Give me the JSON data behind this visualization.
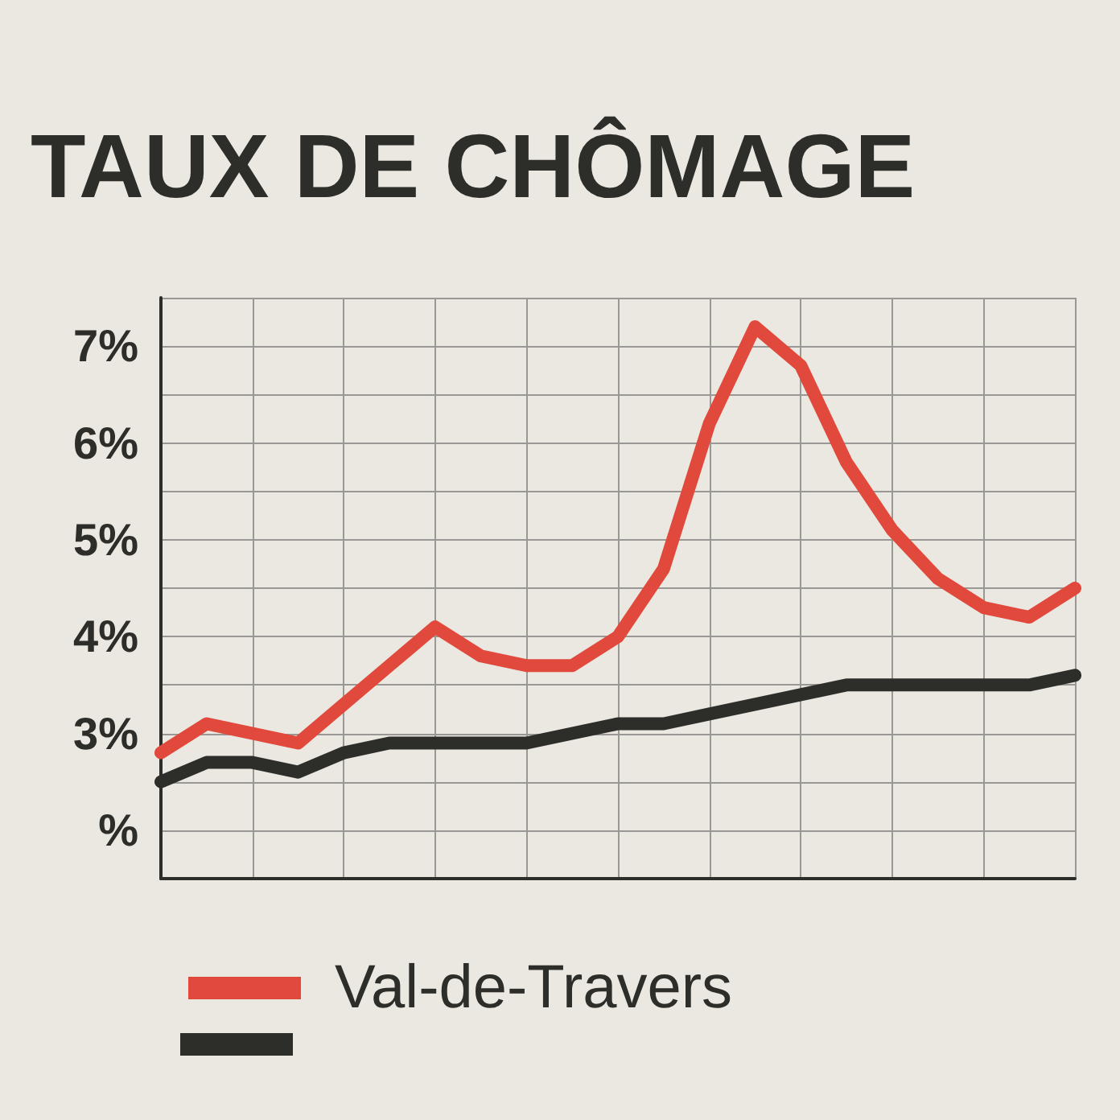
{
  "chart_data": {
    "type": "line",
    "title": "TAUX DE CHÔMAGE",
    "categories": [
      null,
      null,
      null,
      null,
      null,
      null,
      null,
      null,
      null,
      null,
      null,
      null,
      null,
      null,
      null,
      null,
      null,
      null,
      null,
      null,
      null
    ],
    "series": [
      {
        "name": "Val-de-Travers",
        "color": "#e0493b",
        "values": [
          2.8,
          3.1,
          3.0,
          2.9,
          3.3,
          3.7,
          4.1,
          3.8,
          3.7,
          3.7,
          4.0,
          4.7,
          6.2,
          7.2,
          6.8,
          5.8,
          5.1,
          4.6,
          4.3,
          4.2,
          4.5
        ]
      },
      {
        "color": "#2d2d2a",
        "values": [
          2.5,
          2.7,
          2.7,
          2.6,
          2.8,
          2.9,
          2.9,
          2.9,
          2.9,
          3.0,
          3.1,
          3.1,
          3.2,
          3.3,
          3.4,
          3.5,
          3.5,
          3.5,
          3.5,
          3.5,
          3.6
        ]
      }
    ],
    "ylim": [
      1.5,
      7.5
    ],
    "yticks": [
      {
        "value": 1.5,
        "label": null
      },
      {
        "value": 2,
        "label": "%"
      },
      {
        "value": 2.5,
        "label": null
      },
      {
        "value": 3,
        "label": "3%"
      },
      {
        "value": 3.5,
        "label": null
      },
      {
        "value": 4,
        "label": "4%"
      },
      {
        "value": 4.5,
        "label": null
      },
      {
        "value": 5,
        "label": "5%"
      },
      {
        "value": 5.5,
        "label": null
      },
      {
        "value": 6,
        "label": "6%"
      },
      {
        "value": 6.5,
        "label": null
      },
      {
        "value": 7,
        "label": "7%"
      },
      {
        "value": 7.5,
        "label": null
      }
    ],
    "grid": true,
    "legend": "bottom left"
  }
}
